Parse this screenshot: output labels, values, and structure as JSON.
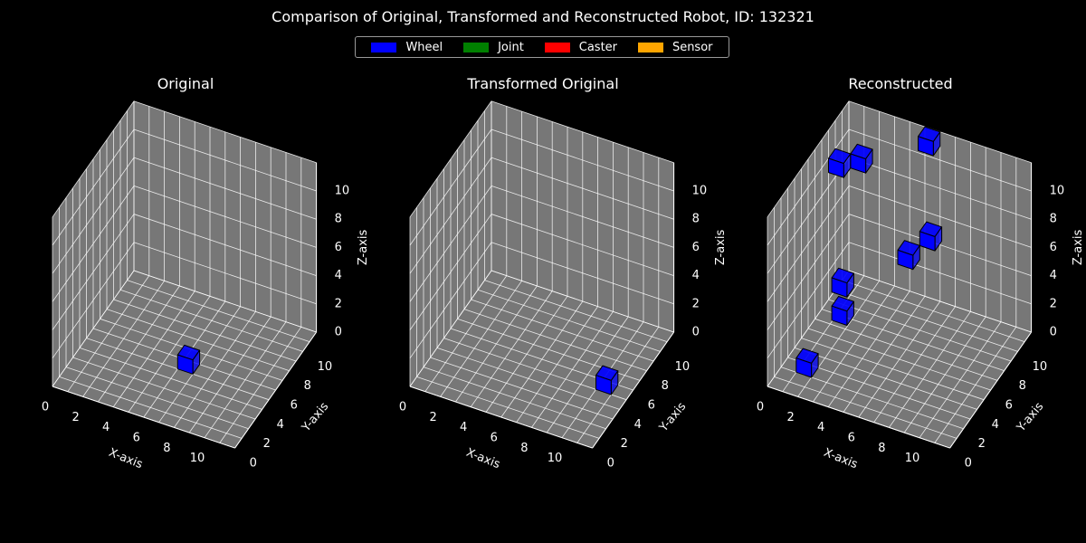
{
  "title": "Comparison of Original, Transformed and Reconstructed Robot, ID: 132321",
  "legend": [
    {
      "label": "Wheel",
      "color": "#0000ff"
    },
    {
      "label": "Joint",
      "color": "#008000"
    },
    {
      "label": "Caster",
      "color": "#ff0000"
    },
    {
      "label": "Sensor",
      "color": "#ffa500"
    }
  ],
  "colors": {
    "pane": "#777777",
    "grid": "#ffffff",
    "edge": "#000000",
    "wheel": "#0000ff"
  },
  "chart_data": [
    {
      "type": "scatter",
      "subtype": "3d-voxel",
      "title": "Original",
      "xlabel": "X-axis",
      "ylabel": "Y-axis",
      "zlabel": "Z-axis",
      "xlim": [
        0,
        12
      ],
      "ylim": [
        0,
        12
      ],
      "zlim": [
        0,
        12
      ],
      "x_ticks": [
        0,
        2,
        4,
        6,
        8,
        10
      ],
      "y_ticks": [
        0,
        2,
        4,
        6,
        8,
        10
      ],
      "z_ticks": [
        0,
        2,
        4,
        6,
        8,
        10
      ],
      "grid": true,
      "voxels": [
        {
          "x": 6,
          "y": 5,
          "z": 0,
          "type": "Wheel"
        }
      ]
    },
    {
      "type": "scatter",
      "subtype": "3d-voxel",
      "title": "Transformed Original",
      "xlabel": "X-axis",
      "ylabel": "Y-axis",
      "zlabel": "Z-axis",
      "xlim": [
        0,
        12
      ],
      "ylim": [
        0,
        12
      ],
      "zlim": [
        0,
        12
      ],
      "x_ticks": [
        0,
        2,
        4,
        6,
        8,
        10
      ],
      "y_ticks": [
        0,
        2,
        4,
        6,
        8,
        10
      ],
      "z_ticks": [
        0,
        2,
        4,
        6,
        8,
        10
      ],
      "grid": true,
      "voxels": [
        {
          "x": 10,
          "y": 5,
          "z": 0,
          "type": "Wheel"
        }
      ]
    },
    {
      "type": "scatter",
      "subtype": "3d-voxel",
      "title": "Reconstructed",
      "xlabel": "X-axis",
      "ylabel": "Y-axis",
      "zlabel": "Z-axis",
      "xlim": [
        0,
        12
      ],
      "ylim": [
        0,
        12
      ],
      "zlim": [
        0,
        12
      ],
      "x_ticks": [
        0,
        2,
        4,
        6,
        8,
        10
      ],
      "y_ticks": [
        0,
        2,
        4,
        6,
        8,
        10
      ],
      "z_ticks": [
        0,
        2,
        4,
        6,
        8,
        10
      ],
      "grid": true,
      "voxels": [
        {
          "x": 1,
          "y": 2,
          "z": 0,
          "type": "Wheel"
        },
        {
          "x": 2,
          "y": 5,
          "z": 2,
          "type": "Wheel"
        },
        {
          "x": 2,
          "y": 5,
          "z": 4,
          "type": "Wheel"
        },
        {
          "x": 0,
          "y": 9,
          "z": 9,
          "type": "Wheel"
        },
        {
          "x": 1,
          "y": 10,
          "z": 9,
          "type": "Wheel"
        },
        {
          "x": 5,
          "y": 8,
          "z": 5,
          "type": "Wheel"
        },
        {
          "x": 6,
          "y": 9,
          "z": 6,
          "type": "Wheel"
        },
        {
          "x": 5,
          "y": 11,
          "z": 11,
          "type": "Wheel"
        }
      ]
    }
  ]
}
